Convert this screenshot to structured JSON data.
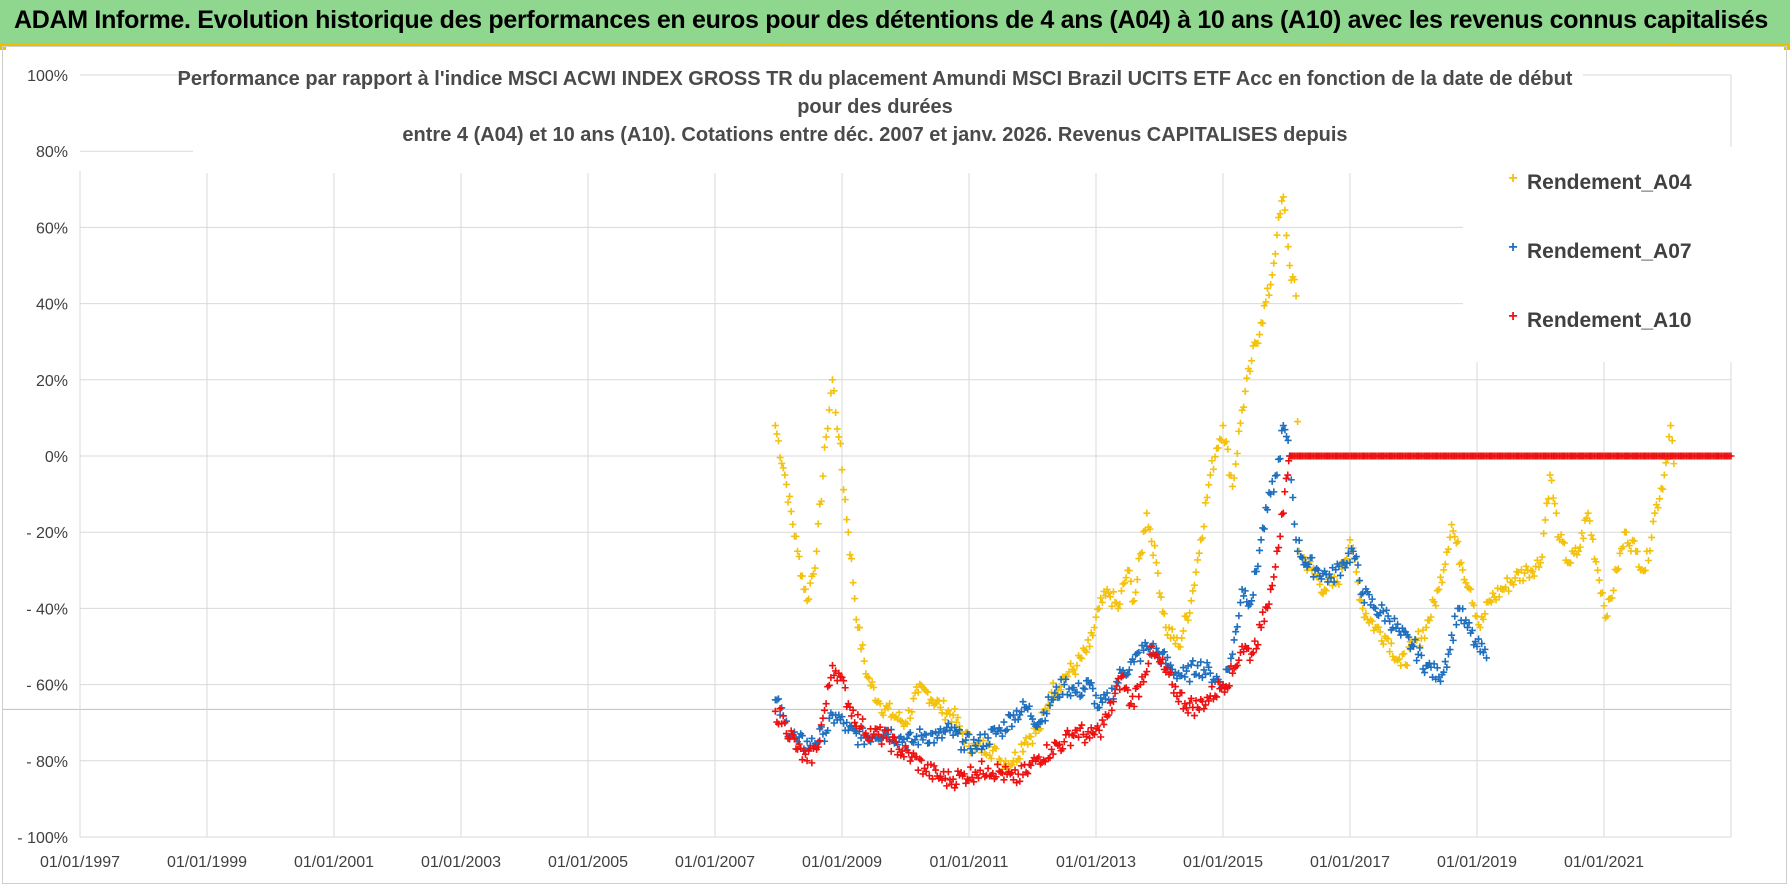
{
  "banner": {
    "title": "ADAM Informe. Evolution historique des performances en euros pour des détentions de 4 ans (A04) à 10 ans (A10) avec les revenus connus capitalisés"
  },
  "colors": {
    "banner_bg": "#8fd68f",
    "banner_border": "#e8c200",
    "A04": "#f4c20d",
    "A07": "#1f6fbf",
    "A10": "#ee1111",
    "grid": "#d9d9d9"
  },
  "chart_data": {
    "type": "scatter",
    "title_lines": [
      "Performance par rapport à l'indice MSCI ACWI INDEX GROSS TR  du placement Amundi MSCI Brazil UCITS ETF Acc en fonction de la date de début",
      "pour des durées",
      "entre 4 (A04) et 10 ans (A10). Cotations entre déc. 2007 et janv. 2026. Revenus CAPITALISES depuis"
    ],
    "x_ticks": [
      "01/01/1997",
      "01/01/1999",
      "01/01/2001",
      "01/01/2003",
      "01/01/2005",
      "01/01/2007",
      "01/01/2009",
      "01/01/2011",
      "01/01/2013",
      "01/01/2015",
      "01/01/2017",
      "01/01/2019",
      "01/01/2021"
    ],
    "xlim": [
      1997.0,
      2023.0
    ],
    "y_ticks": [
      "100%",
      "80%",
      "60%",
      "40%",
      "20%",
      "0%",
      "- 20%",
      "- 40%",
      "- 60%",
      "- 80%",
      "- 100%"
    ],
    "ylim": [
      -100,
      100
    ],
    "legend_position": "top-right",
    "series": [
      {
        "name": "Rendement_A04",
        "color": "#f4c20d",
        "points": [
          [
            2007.95,
            8
          ],
          [
            2008.1,
            -5
          ],
          [
            2008.3,
            -25
          ],
          [
            2008.45,
            -38
          ],
          [
            2008.6,
            -25
          ],
          [
            2008.75,
            5
          ],
          [
            2008.85,
            20
          ],
          [
            2008.95,
            5
          ],
          [
            2009.1,
            -20
          ],
          [
            2009.25,
            -45
          ],
          [
            2009.4,
            -58
          ],
          [
            2009.6,
            -65
          ],
          [
            2009.8,
            -68
          ],
          [
            2010.0,
            -70
          ],
          [
            2010.2,
            -62
          ],
          [
            2010.35,
            -62
          ],
          [
            2010.55,
            -66
          ],
          [
            2010.75,
            -68
          ],
          [
            2010.9,
            -73
          ],
          [
            2011.1,
            -77
          ],
          [
            2011.3,
            -76
          ],
          [
            2011.5,
            -80
          ],
          [
            2011.7,
            -80
          ],
          [
            2011.9,
            -74
          ],
          [
            2012.1,
            -72
          ],
          [
            2012.3,
            -62
          ],
          [
            2012.5,
            -58
          ],
          [
            2012.7,
            -55
          ],
          [
            2012.9,
            -50
          ],
          [
            2013.05,
            -40
          ],
          [
            2013.2,
            -36
          ],
          [
            2013.35,
            -40
          ],
          [
            2013.5,
            -30
          ],
          [
            2013.6,
            -38
          ],
          [
            2013.8,
            -15
          ],
          [
            2013.95,
            -28
          ],
          [
            2014.1,
            -45
          ],
          [
            2014.3,
            -50
          ],
          [
            2014.5,
            -38
          ],
          [
            2014.65,
            -22
          ],
          [
            2014.8,
            -5
          ],
          [
            2014.9,
            2
          ],
          [
            2015.0,
            8
          ],
          [
            2015.15,
            -8
          ],
          [
            2015.3,
            12
          ],
          [
            2015.45,
            25
          ],
          [
            2015.6,
            35
          ],
          [
            2015.75,
            45
          ],
          [
            2015.85,
            58
          ],
          [
            2015.95,
            68
          ],
          [
            2016.05,
            50
          ],
          [
            2016.15,
            42
          ],
          [
            2016.2,
            -25
          ],
          [
            2016.4,
            -30
          ],
          [
            2016.6,
            -35
          ],
          [
            2016.8,
            -33
          ],
          [
            2017.0,
            -22
          ],
          [
            2017.2,
            -40
          ],
          [
            2017.4,
            -45
          ],
          [
            2017.6,
            -48
          ],
          [
            2017.8,
            -55
          ],
          [
            2018.0,
            -50
          ],
          [
            2018.2,
            -45
          ],
          [
            2018.4,
            -35
          ],
          [
            2018.6,
            -18
          ],
          [
            2018.75,
            -28
          ],
          [
            2018.9,
            -35
          ],
          [
            2019.05,
            -45
          ],
          [
            2019.2,
            -38
          ],
          [
            2019.4,
            -35
          ],
          [
            2019.6,
            -32
          ],
          [
            2019.8,
            -30
          ],
          [
            2020.0,
            -28
          ],
          [
            2020.15,
            -5
          ],
          [
            2020.3,
            -22
          ],
          [
            2020.45,
            -28
          ],
          [
            2020.6,
            -25
          ],
          [
            2020.75,
            -15
          ],
          [
            2020.9,
            -30
          ],
          [
            2021.05,
            -42
          ],
          [
            2021.2,
            -30
          ],
          [
            2021.35,
            -20
          ],
          [
            2021.5,
            -25
          ],
          [
            2021.65,
            -30
          ],
          [
            2021.8,
            -15
          ],
          [
            2021.95,
            -5
          ],
          [
            2022.05,
            8
          ],
          [
            2022.1,
            -2
          ]
        ]
      },
      {
        "name": "Rendement_A07",
        "color": "#1f6fbf",
        "points": [
          [
            2007.95,
            -64
          ],
          [
            2008.1,
            -70
          ],
          [
            2008.3,
            -75
          ],
          [
            2008.5,
            -76
          ],
          [
            2008.7,
            -73
          ],
          [
            2008.9,
            -68
          ],
          [
            2009.1,
            -72
          ],
          [
            2009.3,
            -74
          ],
          [
            2009.5,
            -73
          ],
          [
            2009.7,
            -72
          ],
          [
            2009.9,
            -74
          ],
          [
            2010.1,
            -75
          ],
          [
            2010.3,
            -73
          ],
          [
            2010.5,
            -74
          ],
          [
            2010.7,
            -72
          ],
          [
            2010.9,
            -75
          ],
          [
            2011.1,
            -76
          ],
          [
            2011.3,
            -74
          ],
          [
            2011.5,
            -72
          ],
          [
            2011.7,
            -68
          ],
          [
            2011.9,
            -66
          ],
          [
            2012.1,
            -70
          ],
          [
            2012.3,
            -64
          ],
          [
            2012.5,
            -60
          ],
          [
            2012.7,
            -62
          ],
          [
            2012.9,
            -60
          ],
          [
            2013.05,
            -66
          ],
          [
            2013.2,
            -64
          ],
          [
            2013.4,
            -57
          ],
          [
            2013.6,
            -54
          ],
          [
            2013.8,
            -50
          ],
          [
            2014.0,
            -52
          ],
          [
            2014.2,
            -56
          ],
          [
            2014.4,
            -58
          ],
          [
            2014.6,
            -55
          ],
          [
            2014.8,
            -57
          ],
          [
            2015.0,
            -60
          ],
          [
            2015.15,
            -52
          ],
          [
            2015.3,
            -35
          ],
          [
            2015.45,
            -38
          ],
          [
            2015.6,
            -22
          ],
          [
            2015.75,
            -10
          ],
          [
            2015.85,
            -5
          ],
          [
            2015.95,
            8
          ],
          [
            2016.05,
            0
          ],
          [
            2016.15,
            -22
          ],
          [
            2016.3,
            -28
          ],
          [
            2016.5,
            -30
          ],
          [
            2016.7,
            -32
          ],
          [
            2016.9,
            -28
          ],
          [
            2017.05,
            -25
          ],
          [
            2017.2,
            -36
          ],
          [
            2017.4,
            -40
          ],
          [
            2017.6,
            -42
          ],
          [
            2017.8,
            -47
          ],
          [
            2018.0,
            -50
          ],
          [
            2018.2,
            -55
          ],
          [
            2018.4,
            -58
          ],
          [
            2018.55,
            -52
          ],
          [
            2018.7,
            -40
          ],
          [
            2018.85,
            -45
          ],
          [
            2019.0,
            -50
          ],
          [
            2019.15,
            -53
          ]
        ]
      },
      {
        "name": "Rendement_A10",
        "color": "#ee1111",
        "points": [
          [
            2007.95,
            -67
          ],
          [
            2008.1,
            -70
          ],
          [
            2008.3,
            -77
          ],
          [
            2008.45,
            -80
          ],
          [
            2008.6,
            -77
          ],
          [
            2008.75,
            -65
          ],
          [
            2008.85,
            -55
          ],
          [
            2008.95,
            -57
          ],
          [
            2009.1,
            -65
          ],
          [
            2009.3,
            -71
          ],
          [
            2009.5,
            -73
          ],
          [
            2009.7,
            -74
          ],
          [
            2009.9,
            -77
          ],
          [
            2010.1,
            -79
          ],
          [
            2010.3,
            -82
          ],
          [
            2010.5,
            -84
          ],
          [
            2010.7,
            -85
          ],
          [
            2010.9,
            -84
          ],
          [
            2011.1,
            -83
          ],
          [
            2011.3,
            -82
          ],
          [
            2011.5,
            -83
          ],
          [
            2011.7,
            -85
          ],
          [
            2011.9,
            -83
          ],
          [
            2012.1,
            -79
          ],
          [
            2012.3,
            -77
          ],
          [
            2012.5,
            -75
          ],
          [
            2012.7,
            -72
          ],
          [
            2012.9,
            -74
          ],
          [
            2013.05,
            -72
          ],
          [
            2013.2,
            -68
          ],
          [
            2013.4,
            -58
          ],
          [
            2013.55,
            -65
          ],
          [
            2013.7,
            -60
          ],
          [
            2013.85,
            -52
          ],
          [
            2014.0,
            -54
          ],
          [
            2014.2,
            -60
          ],
          [
            2014.4,
            -65
          ],
          [
            2014.6,
            -66
          ],
          [
            2014.8,
            -63
          ],
          [
            2015.0,
            -60
          ],
          [
            2015.15,
            -57
          ],
          [
            2015.3,
            -50
          ],
          [
            2015.45,
            -52
          ],
          [
            2015.6,
            -45
          ],
          [
            2015.75,
            -35
          ],
          [
            2015.85,
            -25
          ],
          [
            2015.95,
            -15
          ],
          [
            2016.02,
            -5
          ],
          [
            2016.05,
            0
          ],
          [
            2016.5,
            0
          ],
          [
            2017.0,
            0
          ],
          [
            2017.5,
            0
          ],
          [
            2018.0,
            0
          ],
          [
            2018.5,
            0
          ],
          [
            2019.0,
            0
          ],
          [
            2019.5,
            0
          ],
          [
            2020.0,
            0
          ],
          [
            2020.5,
            0
          ],
          [
            2021.0,
            0
          ],
          [
            2021.5,
            0
          ],
          [
            2022.0,
            0
          ],
          [
            2022.5,
            0
          ],
          [
            2023.0,
            0
          ]
        ]
      }
    ]
  }
}
